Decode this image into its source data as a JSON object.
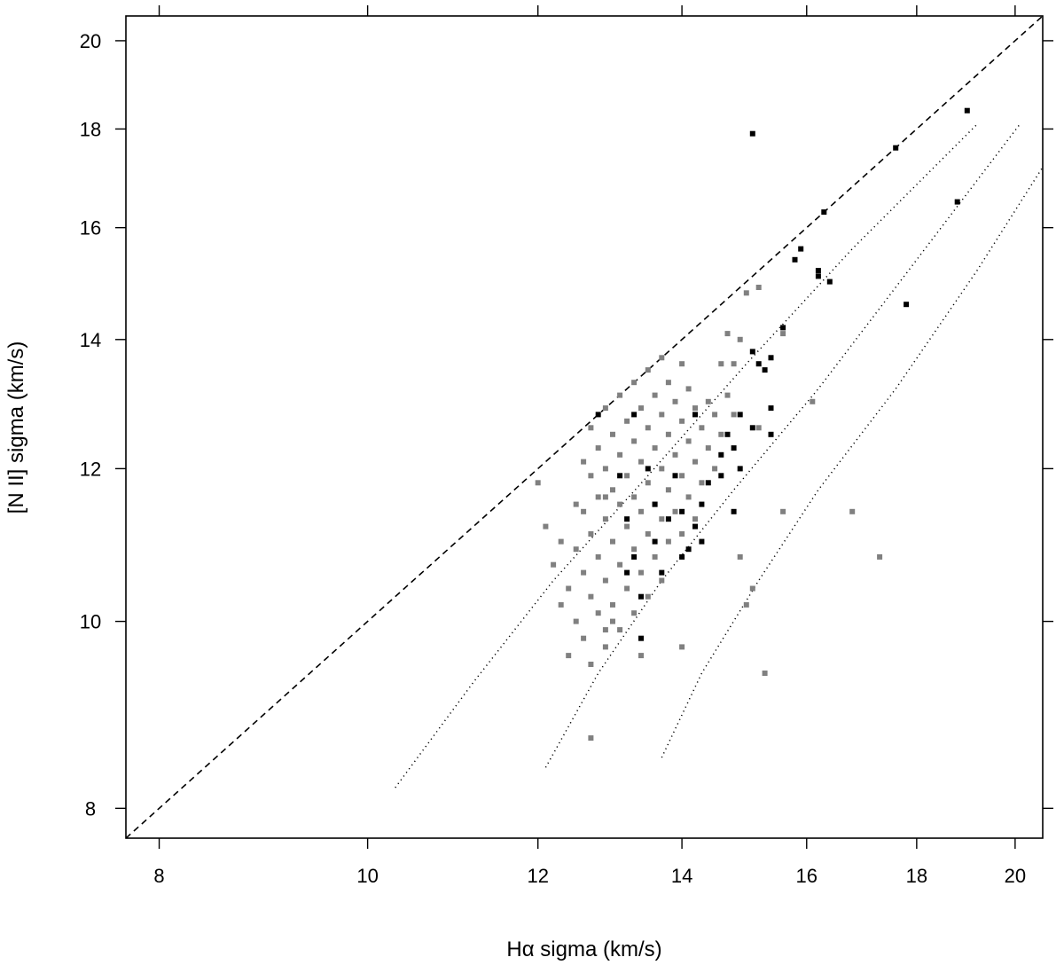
{
  "chart_data": {
    "type": "scatter",
    "title": "",
    "xlabel": "Hα sigma (km/s)",
    "ylabel": "[N II] sigma (km/s)",
    "xscale": "log",
    "yscale": "log",
    "xlim": [
      7.72,
      20.6
    ],
    "ylim": [
      7.72,
      20.6
    ],
    "xticks": [
      8,
      10,
      12,
      14,
      16,
      18,
      20
    ],
    "yticks": [
      8,
      10,
      12,
      14,
      16,
      18,
      20
    ],
    "xtick_labels": [
      "8",
      "10",
      "12",
      "14",
      "16",
      "18",
      "20"
    ],
    "ytick_labels": [
      "8",
      "10",
      "12",
      "14",
      "16",
      "18",
      "20"
    ],
    "grid": false,
    "ticks_on_all_sides": true,
    "colors": {
      "gray_points": "#808080",
      "black_points": "#000000",
      "lines": "#000000"
    },
    "reference_lines": [
      {
        "style": "dashed",
        "points": [
          [
            7.72,
            7.72
          ],
          [
            20.6,
            20.6
          ]
        ]
      },
      {
        "style": "dotted",
        "points": [
          [
            10.3,
            8.2
          ],
          [
            11.2,
            9.3
          ],
          [
            12.2,
            10.5
          ],
          [
            13.5,
            11.9
          ],
          [
            15.0,
            13.6
          ],
          [
            16.8,
            15.6
          ],
          [
            19.2,
            18.1
          ]
        ]
      },
      {
        "style": "dotted",
        "points": [
          [
            12.1,
            8.4
          ],
          [
            12.8,
            9.4
          ],
          [
            13.7,
            10.5
          ],
          [
            14.8,
            11.7
          ],
          [
            16.2,
            13.2
          ],
          [
            18.0,
            15.4
          ],
          [
            20.1,
            18.1
          ]
        ]
      },
      {
        "style": "dotted",
        "points": [
          [
            13.7,
            8.5
          ],
          [
            14.3,
            9.4
          ],
          [
            15.2,
            10.5
          ],
          [
            16.2,
            11.7
          ],
          [
            17.6,
            13.2
          ],
          [
            19.2,
            15.2
          ],
          [
            20.6,
            17.2
          ]
        ]
      }
    ],
    "series": [
      {
        "color": "#808080",
        "points": [
          [
            12.0,
            11.8
          ],
          [
            12.1,
            11.2
          ],
          [
            12.2,
            10.7
          ],
          [
            12.3,
            11.0
          ],
          [
            12.3,
            10.2
          ],
          [
            12.4,
            9.6
          ],
          [
            12.4,
            10.4
          ],
          [
            12.5,
            11.5
          ],
          [
            12.5,
            10.9
          ],
          [
            12.5,
            10.0
          ],
          [
            12.6,
            12.1
          ],
          [
            12.6,
            11.4
          ],
          [
            12.6,
            10.6
          ],
          [
            12.6,
            9.8
          ],
          [
            12.7,
            12.6
          ],
          [
            12.7,
            11.9
          ],
          [
            12.7,
            11.1
          ],
          [
            12.7,
            10.3
          ],
          [
            12.7,
            9.5
          ],
          [
            12.8,
            12.3
          ],
          [
            12.8,
            11.6
          ],
          [
            12.8,
            10.8
          ],
          [
            12.8,
            10.1
          ],
          [
            12.9,
            12.9
          ],
          [
            12.9,
            12.0
          ],
          [
            12.9,
            11.3
          ],
          [
            12.9,
            10.5
          ],
          [
            12.9,
            9.7
          ],
          [
            13.0,
            12.5
          ],
          [
            13.0,
            11.7
          ],
          [
            13.0,
            11.0
          ],
          [
            13.0,
            10.2
          ],
          [
            13.1,
            13.1
          ],
          [
            13.1,
            12.2
          ],
          [
            13.1,
            11.5
          ],
          [
            13.1,
            10.7
          ],
          [
            13.1,
            9.9
          ],
          [
            13.2,
            12.7
          ],
          [
            13.2,
            11.9
          ],
          [
            13.2,
            11.2
          ],
          [
            13.2,
            10.4
          ],
          [
            13.3,
            13.3
          ],
          [
            13.3,
            12.4
          ],
          [
            13.3,
            11.6
          ],
          [
            13.3,
            10.9
          ],
          [
            13.3,
            10.1
          ],
          [
            13.4,
            12.9
          ],
          [
            13.4,
            12.1
          ],
          [
            13.4,
            11.4
          ],
          [
            13.4,
            10.6
          ],
          [
            13.5,
            13.5
          ],
          [
            13.5,
            12.6
          ],
          [
            13.5,
            11.8
          ],
          [
            13.5,
            11.1
          ],
          [
            13.5,
            10.3
          ],
          [
            13.6,
            13.1
          ],
          [
            13.6,
            12.3
          ],
          [
            13.6,
            11.5
          ],
          [
            13.6,
            10.8
          ],
          [
            13.7,
            13.7
          ],
          [
            13.7,
            12.8
          ],
          [
            13.7,
            12.0
          ],
          [
            13.7,
            11.3
          ],
          [
            13.7,
            10.5
          ],
          [
            13.8,
            13.3
          ],
          [
            13.8,
            12.5
          ],
          [
            13.8,
            11.7
          ],
          [
            13.8,
            11.0
          ],
          [
            13.9,
            13.0
          ],
          [
            13.9,
            12.2
          ],
          [
            13.9,
            11.4
          ],
          [
            14.0,
            13.6
          ],
          [
            14.0,
            12.7
          ],
          [
            14.0,
            11.9
          ],
          [
            14.0,
            11.1
          ],
          [
            14.1,
            13.2
          ],
          [
            14.1,
            12.4
          ],
          [
            14.1,
            11.6
          ],
          [
            14.2,
            12.9
          ],
          [
            14.2,
            12.1
          ],
          [
            14.2,
            11.3
          ],
          [
            14.3,
            12.6
          ],
          [
            14.3,
            11.8
          ],
          [
            14.4,
            13.0
          ],
          [
            14.4,
            12.3
          ],
          [
            14.5,
            12.8
          ],
          [
            14.5,
            12.0
          ],
          [
            14.6,
            13.6
          ],
          [
            14.6,
            12.5
          ],
          [
            14.7,
            14.1
          ],
          [
            14.7,
            13.1
          ],
          [
            14.8,
            12.8
          ],
          [
            14.8,
            13.6
          ],
          [
            14.9,
            14.0
          ],
          [
            15.0,
            14.8
          ],
          [
            15.2,
            14.9
          ],
          [
            15.2,
            12.6
          ],
          [
            15.6,
            14.1
          ],
          [
            15.6,
            11.4
          ],
          [
            16.1,
            13.0
          ],
          [
            16.8,
            11.4
          ],
          [
            17.3,
            10.8
          ],
          [
            14.9,
            10.8
          ],
          [
            15.0,
            10.2
          ],
          [
            15.1,
            10.4
          ],
          [
            15.3,
            9.4
          ],
          [
            14.0,
            9.7
          ],
          [
            13.4,
            9.6
          ],
          [
            12.7,
            8.7
          ],
          [
            12.9,
            9.9
          ],
          [
            13.0,
            10.0
          ],
          [
            12.9,
            11.6
          ]
        ]
      },
      {
        "color": "#000000",
        "points": [
          [
            15.1,
            17.9
          ],
          [
            17.6,
            17.6
          ],
          [
            19.0,
            18.4
          ],
          [
            18.8,
            16.5
          ],
          [
            16.3,
            16.3
          ],
          [
            15.9,
            15.6
          ],
          [
            15.8,
            15.4
          ],
          [
            16.2,
            15.2
          ],
          [
            16.2,
            15.1
          ],
          [
            16.4,
            15.0
          ],
          [
            17.8,
            14.6
          ],
          [
            15.6,
            14.2
          ],
          [
            15.1,
            13.8
          ],
          [
            15.4,
            13.7
          ],
          [
            15.3,
            13.5
          ],
          [
            15.2,
            13.6
          ],
          [
            15.4,
            12.9
          ],
          [
            15.4,
            12.5
          ],
          [
            15.1,
            12.6
          ],
          [
            14.9,
            12.8
          ],
          [
            14.7,
            12.5
          ],
          [
            14.8,
            12.3
          ],
          [
            14.6,
            12.2
          ],
          [
            14.6,
            11.9
          ],
          [
            14.4,
            11.8
          ],
          [
            14.2,
            12.8
          ],
          [
            13.3,
            12.8
          ],
          [
            13.5,
            12.0
          ],
          [
            13.6,
            11.5
          ],
          [
            13.6,
            11.0
          ],
          [
            13.4,
            10.3
          ],
          [
            13.7,
            10.6
          ],
          [
            14.0,
            11.4
          ],
          [
            14.2,
            11.2
          ],
          [
            14.3,
            11.0
          ],
          [
            14.0,
            10.8
          ],
          [
            14.3,
            11.5
          ],
          [
            12.8,
            12.8
          ],
          [
            13.1,
            11.9
          ],
          [
            13.2,
            11.3
          ],
          [
            13.4,
            9.8
          ],
          [
            13.3,
            10.8
          ],
          [
            13.9,
            11.9
          ],
          [
            14.1,
            10.9
          ],
          [
            14.9,
            12.0
          ],
          [
            14.8,
            11.4
          ],
          [
            13.2,
            10.6
          ],
          [
            13.8,
            11.3
          ]
        ]
      }
    ]
  }
}
